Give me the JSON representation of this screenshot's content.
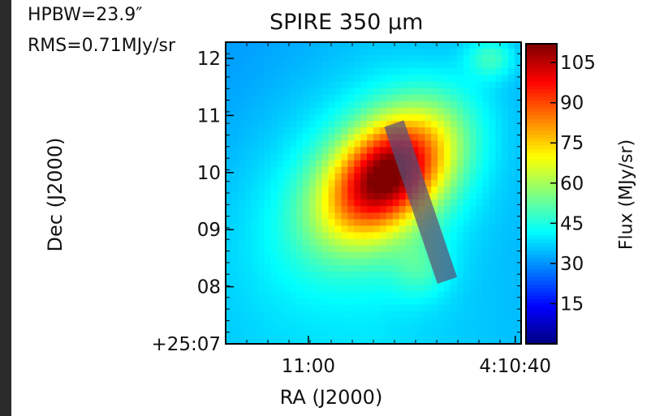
{
  "annotations": {
    "hpbw": "HPBW=23.9″",
    "rms": "RMS=0.71MJy/sr"
  },
  "colors": {
    "page_background": "#2b2b2b",
    "slit_overlay": "#5a4f78",
    "colormap": [
      "#00007f",
      "#0000ff",
      "#007fff",
      "#00ffff",
      "#7fff7f",
      "#ffff00",
      "#ff7f00",
      "#ff0000",
      "#7f0000"
    ]
  },
  "chart_data": {
    "type": "heatmap",
    "title": "SPIRE 350 μm",
    "xlabel": "RA (J2000)",
    "ylabel": "Dec (J2000)",
    "colorbar_label": "Flux (MJy/sr)",
    "colormap": "jet",
    "x_tick_labels": [
      "11:00",
      "4:10:40"
    ],
    "y_tick_labels": [
      "+25:07",
      "08",
      "09",
      "10",
      "11",
      "12"
    ],
    "colorbar_range": [
      0,
      112
    ],
    "colorbar_ticks": [
      15,
      30,
      45,
      60,
      75,
      90,
      105
    ],
    "rms_MJy_sr": 0.71,
    "hpbw_arcsec": 23.9,
    "background_flux": 35,
    "components": [
      {
        "name": "core",
        "cx": 0.55,
        "cy": 0.56,
        "sx": 0.17,
        "sy": 0.11,
        "angle_deg": 42,
        "peak": 70
      },
      {
        "name": "envelope",
        "cx": 0.48,
        "cy": 0.52,
        "sx": 0.34,
        "sy": 0.22,
        "angle_deg": 38,
        "peak": 12
      },
      {
        "name": "south-east-tail",
        "cx": 0.66,
        "cy": 0.25,
        "sx": 0.07,
        "sy": 0.07,
        "angle_deg": 0,
        "peak": 10
      },
      {
        "name": "north-east-clump",
        "cx": 0.9,
        "cy": 0.95,
        "sx": 0.06,
        "sy": 0.05,
        "angle_deg": 0,
        "peak": 14
      }
    ],
    "slit": {
      "description": "rectangular cut across core",
      "start": [
        0.57,
        0.73
      ],
      "end": [
        0.75,
        0.21
      ],
      "width_frac": 0.07
    }
  }
}
